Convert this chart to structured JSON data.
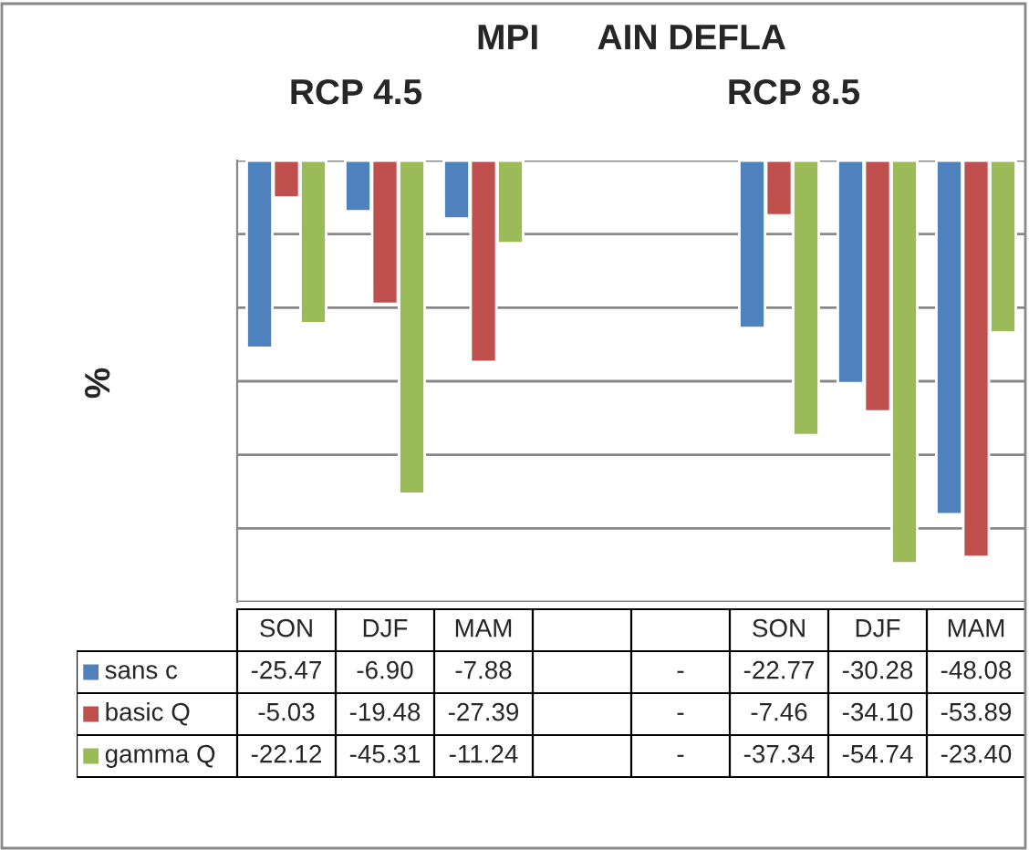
{
  "chart_data": {
    "type": "bar",
    "title": "MPI      AIN DEFLA",
    "ylabel": "%",
    "annotations": [
      "RCP 4.5",
      "RCP 8.5"
    ],
    "categories": [
      "SON",
      "DJF",
      "MAM",
      null,
      null,
      "SON",
      "DJF",
      "MAM"
    ],
    "series": [
      {
        "name": "sans c",
        "color": "#4f81bd",
        "values": [
          -25.47,
          -6.9,
          -7.88,
          null,
          null,
          -22.77,
          -30.28,
          -48.08
        ],
        "value_labels": [
          "-25.47",
          "-6.90",
          "-7.88",
          null,
          "-",
          "-22.77",
          "-30.28",
          "-48.08"
        ]
      },
      {
        "name": "basic Q",
        "color": "#c0504d",
        "values": [
          -5.03,
          -19.48,
          -27.39,
          null,
          null,
          -7.46,
          -34.1,
          -53.89
        ],
        "value_labels": [
          "-5.03",
          "-19.48",
          "-27.39",
          null,
          "-",
          "-7.46",
          "-34.10",
          "-53.89"
        ]
      },
      {
        "name": "gamma Q",
        "color": "#9bbb59",
        "values": [
          -22.12,
          -45.31,
          -11.24,
          null,
          null,
          -37.34,
          -54.74,
          -23.4
        ],
        "value_labels": [
          "-22.12",
          "-45.31",
          "-11.24",
          null,
          "-",
          "-37.34",
          "-54.74",
          "-23.40"
        ]
      }
    ],
    "ylim": [
      -60,
      0
    ],
    "yticks": [
      {
        "value": 0,
        "label": null
      },
      {
        "value": -10,
        "label": null
      },
      {
        "value": -20,
        "label": null
      },
      {
        "value": -30,
        "label": null
      },
      {
        "value": -40,
        "label": null
      },
      {
        "value": -50,
        "label": null
      },
      {
        "value": -60,
        "label": null
      }
    ],
    "grid": "y",
    "legend": "bottom"
  }
}
